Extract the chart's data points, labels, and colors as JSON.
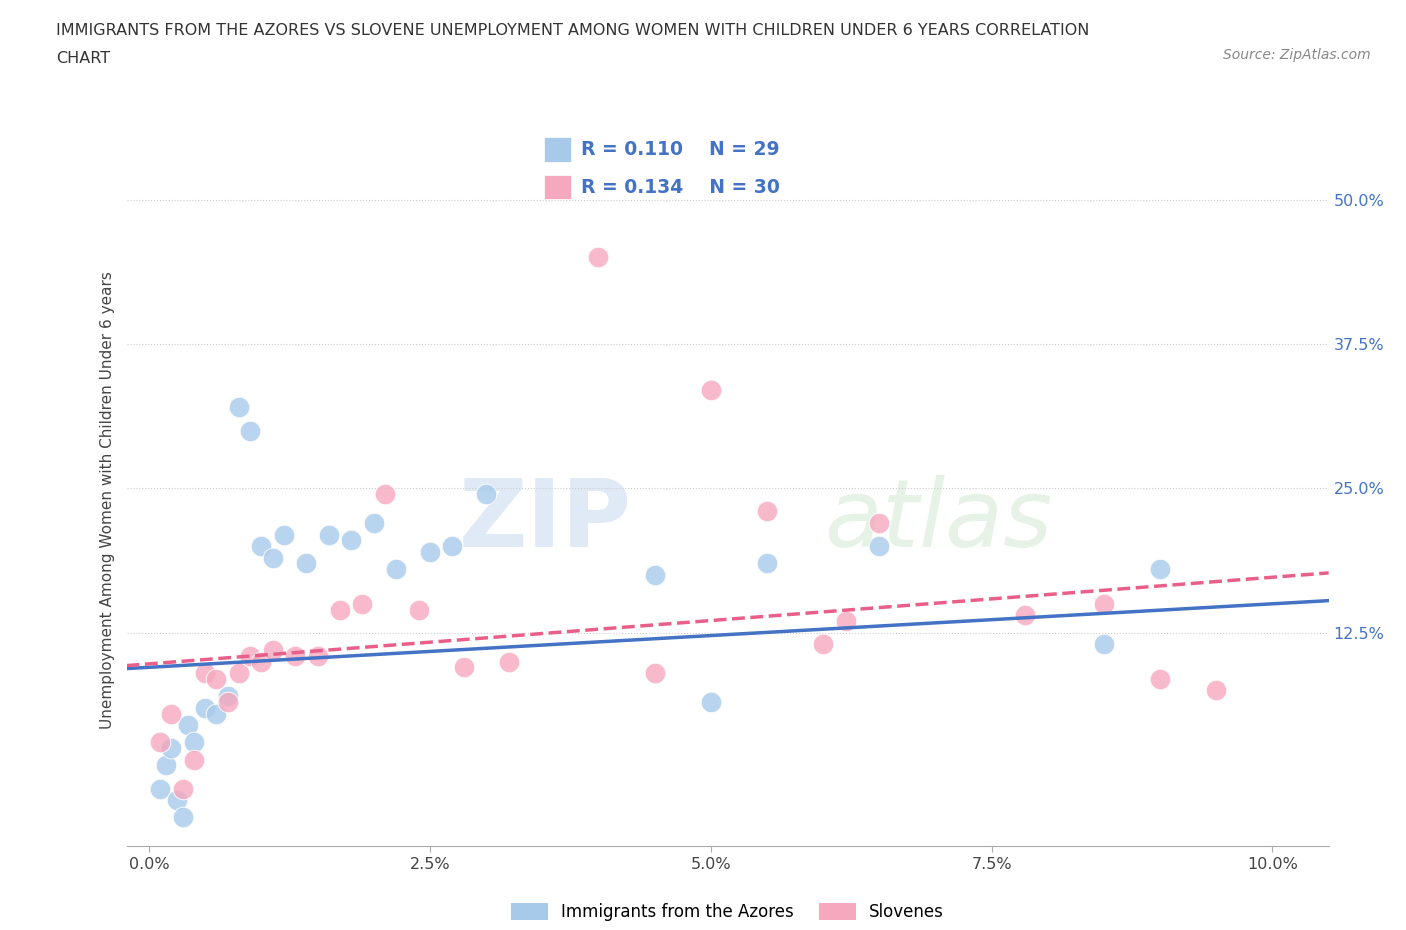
{
  "title_line1": "IMMIGRANTS FROM THE AZORES VS SLOVENE UNEMPLOYMENT AMONG WOMEN WITH CHILDREN UNDER 6 YEARS CORRELATION",
  "title_line2": "CHART",
  "source_text": "Source: ZipAtlas.com",
  "ylabel": "Unemployment Among Women with Children Under 6 years",
  "x_tick_labels": [
    "0.0%",
    "2.5%",
    "5.0%",
    "7.5%",
    "10.0%"
  ],
  "x_tick_values": [
    0.0,
    2.5,
    5.0,
    7.5,
    10.0
  ],
  "y_tick_labels": [
    "12.5%",
    "25.0%",
    "37.5%",
    "50.0%"
  ],
  "y_tick_values": [
    12.5,
    25.0,
    37.5,
    50.0
  ],
  "xlim": [
    -0.2,
    10.5
  ],
  "ylim": [
    -6.0,
    54.0
  ],
  "blue_color": "#A8CAEA",
  "pink_color": "#F5A8BE",
  "blue_line_color": "#4472C4",
  "pink_line_color": "#E8608A",
  "r_blue": "0.110",
  "n_blue": "29",
  "r_pink": "0.134",
  "n_pink": "30",
  "legend_label_blue": "Immigrants from the Azores",
  "legend_label_pink": "Slovenes",
  "watermark_zip": "ZIP",
  "watermark_atlas": "atlas",
  "background_color": "#FFFFFF",
  "grid_color": "#CCCCCC",
  "blue_scatter_x": [
    0.1,
    0.15,
    0.2,
    0.25,
    0.3,
    0.35,
    0.4,
    0.5,
    0.6,
    0.7,
    0.8,
    0.9,
    1.0,
    1.1,
    1.2,
    1.4,
    1.6,
    1.8,
    2.0,
    2.2,
    2.5,
    2.7,
    3.0,
    4.5,
    5.0,
    5.5,
    6.5,
    8.5,
    9.0
  ],
  "blue_scatter_y": [
    -1.0,
    1.0,
    2.5,
    -2.0,
    -3.5,
    4.5,
    3.0,
    6.0,
    5.5,
    7.0,
    32.0,
    30.0,
    20.0,
    19.0,
    21.0,
    18.5,
    21.0,
    20.5,
    22.0,
    18.0,
    19.5,
    20.0,
    24.5,
    17.5,
    6.5,
    18.5,
    20.0,
    11.5,
    18.0
  ],
  "pink_scatter_x": [
    0.1,
    0.2,
    0.3,
    0.4,
    0.5,
    0.6,
    0.7,
    0.8,
    0.9,
    1.0,
    1.1,
    1.3,
    1.5,
    1.7,
    1.9,
    2.1,
    2.4,
    2.8,
    3.2,
    4.0,
    4.5,
    5.0,
    5.5,
    6.0,
    6.2,
    6.5,
    7.8,
    8.5,
    9.0,
    9.5
  ],
  "pink_scatter_y": [
    3.0,
    5.5,
    -1.0,
    1.5,
    9.0,
    8.5,
    6.5,
    9.0,
    10.5,
    10.0,
    11.0,
    10.5,
    10.5,
    14.5,
    15.0,
    24.5,
    14.5,
    9.5,
    10.0,
    45.0,
    9.0,
    33.5,
    23.0,
    11.5,
    13.5,
    22.0,
    14.0,
    15.0,
    8.5,
    7.5
  ]
}
